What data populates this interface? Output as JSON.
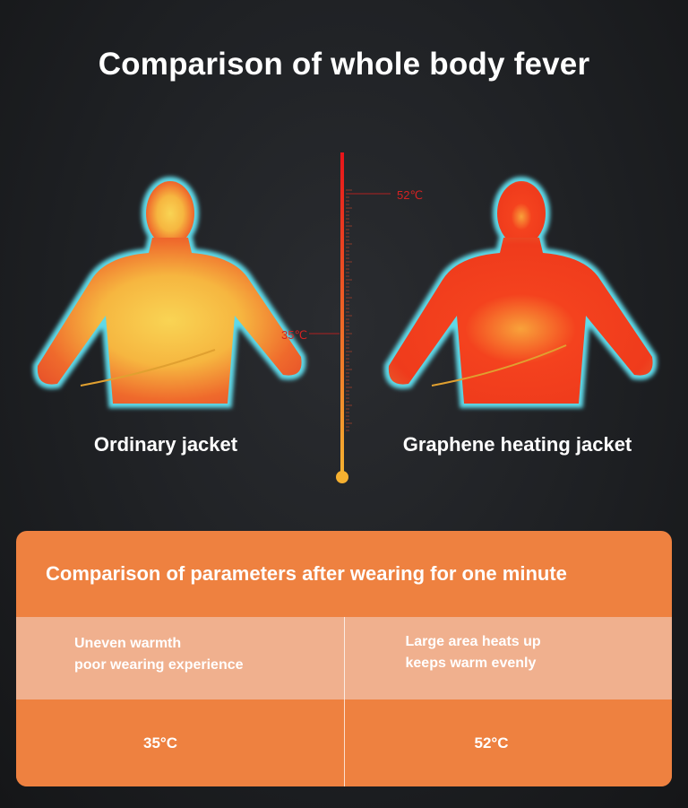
{
  "title": "Comparison of whole body fever",
  "thermometer": {
    "high_label": "52℃",
    "low_label": "35℃",
    "colors": {
      "top": "#e8141a",
      "bottom": "#f5b030"
    }
  },
  "figures": [
    {
      "label": "Ordinary jacket",
      "core_color": "#f7c94a",
      "edge_color": "#5fd9e8"
    },
    {
      "label": "Graphene heating jacket",
      "core_color": "#f43a1e",
      "edge_color": "#5fd9e8"
    }
  ],
  "panel": {
    "heading": "Comparison of parameters after wearing for one minute",
    "columns": [
      {
        "line1": "Uneven warmth",
        "line2": "poor wearing experience",
        "temperature": "35°C"
      },
      {
        "line1": "Large area heats up",
        "line2": "keeps warm evenly",
        "temperature": "52°C"
      }
    ],
    "colors": {
      "orange": "#ee8140",
      "light": "#f0b08e"
    }
  }
}
